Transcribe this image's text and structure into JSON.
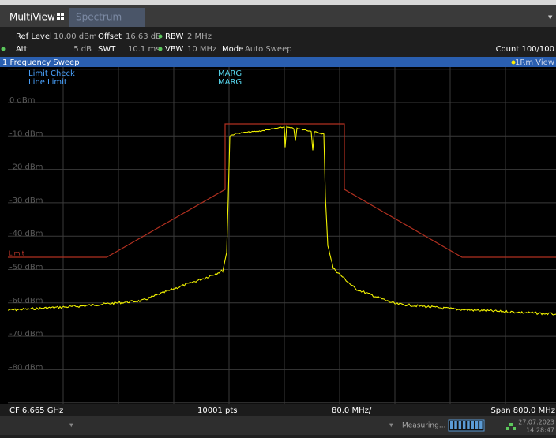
{
  "tabs": [
    "MultiView",
    "Spectrum"
  ],
  "settings": {
    "row1": [
      "Ref Level",
      "10.00 dBm",
      "Offset",
      "16.63 dB",
      "RBW",
      "2 MHz"
    ],
    "row2": [
      "Att",
      "5 dB",
      "SWT",
      "10.1 ms",
      "VBW",
      "10 MHz",
      "Mode",
      "Auto Sweep"
    ],
    "count": "Count 100/100"
  },
  "sweep": {
    "title": "1 Frequency Sweep",
    "view": "1Rm View"
  },
  "plot": {
    "legend": [
      "Limit Check",
      "Line Limit"
    ],
    "status": [
      "MARG",
      "MARG"
    ],
    "limit_label": "Limit",
    "y_labels": [
      "0 dBm",
      "-10 dBm",
      "-20 dBm",
      "-30 dBm",
      "-40 dBm",
      "-50 dBm",
      "-60 dBm",
      "-70 dBm",
      "-80 dBm"
    ]
  },
  "footer": {
    "center": "CF 6.665 GHz",
    "points": "10001 pts",
    "div": "80.0 MHz/",
    "span": "Span 800.0 MHz"
  },
  "status": {
    "state": "Measuring...",
    "date": "27.07.2023",
    "time": "14:28:47"
  }
}
